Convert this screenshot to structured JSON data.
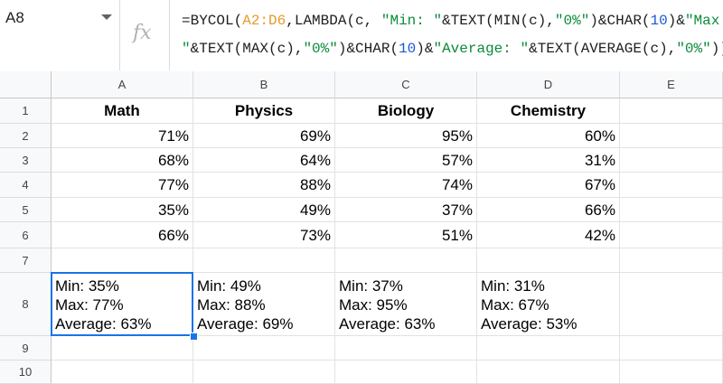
{
  "name_box": "A8",
  "formula": {
    "line1": [
      {
        "t": "=BYCOL(",
        "c": "plain"
      },
      {
        "t": "A2:D6",
        "c": "rng"
      },
      {
        "t": ",LAMBDA(c, ",
        "c": "plain"
      },
      {
        "t": "\"Min: \"",
        "c": "str"
      },
      {
        "t": "&TEXT(MIN(c),",
        "c": "plain"
      },
      {
        "t": "\"0%\"",
        "c": "str"
      },
      {
        "t": ")&CHAR(",
        "c": "plain"
      },
      {
        "t": "10",
        "c": "num"
      },
      {
        "t": ")&",
        "c": "plain"
      },
      {
        "t": "\"Max:",
        "c": "str"
      }
    ],
    "line2": [
      {
        "t": "\"",
        "c": "str"
      },
      {
        "t": "&TEXT(MAX(c),",
        "c": "plain"
      },
      {
        "t": "\"0%\"",
        "c": "str"
      },
      {
        "t": ")&CHAR(",
        "c": "plain"
      },
      {
        "t": "10",
        "c": "num"
      },
      {
        "t": ")&",
        "c": "plain"
      },
      {
        "t": "\"Average: \"",
        "c": "str"
      },
      {
        "t": "&TEXT(AVERAGE(c),",
        "c": "plain"
      },
      {
        "t": "\"0%\"",
        "c": "str"
      },
      {
        "t": ")))",
        "c": "plain"
      }
    ]
  },
  "fx_label": "fx",
  "columns": [
    "A",
    "B",
    "C",
    "D",
    "E"
  ],
  "rows": [
    "1",
    "2",
    "3",
    "4",
    "5",
    "6",
    "7",
    "8",
    "9",
    "10"
  ],
  "headers": [
    "Math",
    "Physics",
    "Biology",
    "Chemistry"
  ],
  "values": [
    [
      "71%",
      "69%",
      "95%",
      "60%"
    ],
    [
      "68%",
      "64%",
      "57%",
      "31%"
    ],
    [
      "77%",
      "88%",
      "74%",
      "67%"
    ],
    [
      "35%",
      "49%",
      "37%",
      "66%"
    ],
    [
      "66%",
      "73%",
      "51%",
      "42%"
    ]
  ],
  "summary": [
    "Min: 35%\nMax: 77%\nAverage: 63%",
    "Min: 49%\nMax: 88%\nAverage: 69%",
    "Min: 37%\nMax: 95%\nAverage: 63%",
    "Min: 31%\nMax: 67%\nAverage: 53%"
  ],
  "colors": {
    "selection": "#1a73e8"
  }
}
